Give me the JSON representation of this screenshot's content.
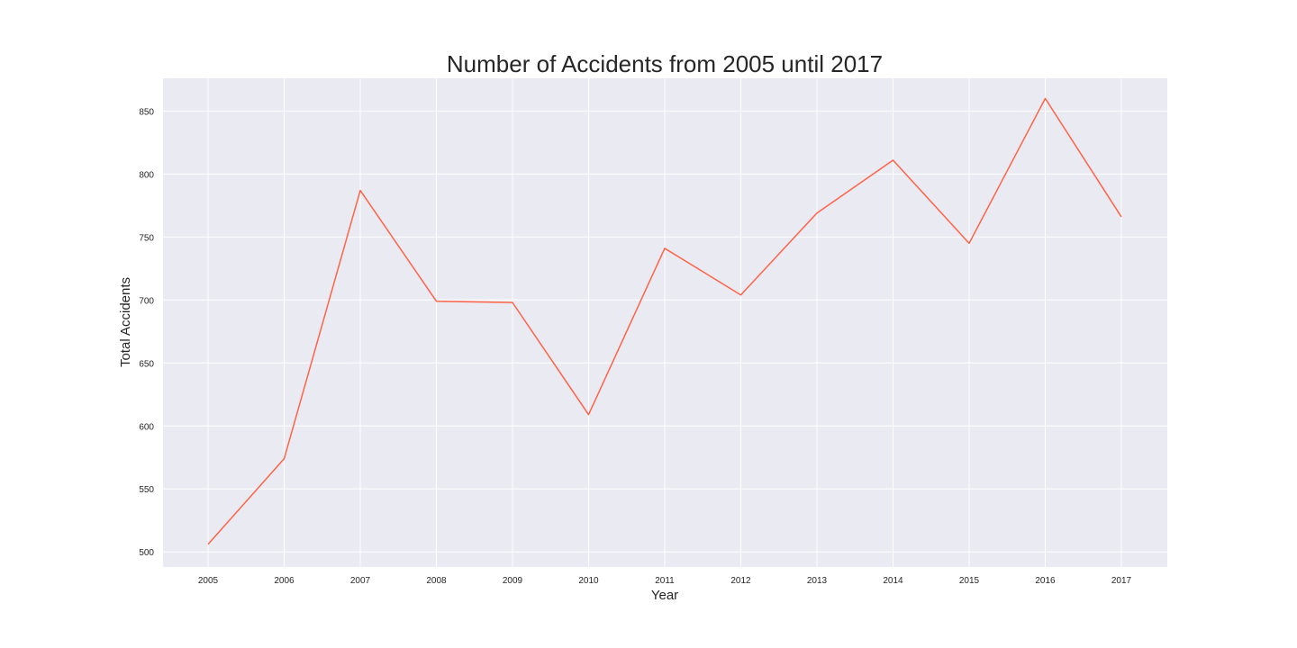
{
  "chart_data": {
    "type": "line",
    "title": "Number of Accidents from 2005 until 2017",
    "xlabel": "Year",
    "ylabel": "Total Accidents",
    "x": [
      "2005",
      "2006",
      "2007",
      "2008",
      "2009",
      "2010",
      "2011",
      "2012",
      "2013",
      "2014",
      "2015",
      "2016",
      "2017"
    ],
    "series": [
      {
        "values": [
          506,
          574,
          787,
          699,
          698,
          609,
          741,
          704,
          769,
          811,
          745,
          860,
          766
        ],
        "color": "#ff6347"
      }
    ],
    "yticks": [
      500,
      550,
      600,
      650,
      700,
      750,
      800,
      850
    ],
    "ylim": [
      488,
      876
    ],
    "grid": true,
    "background_color": "#eaeaf2",
    "grid_color": "#ffffff"
  }
}
